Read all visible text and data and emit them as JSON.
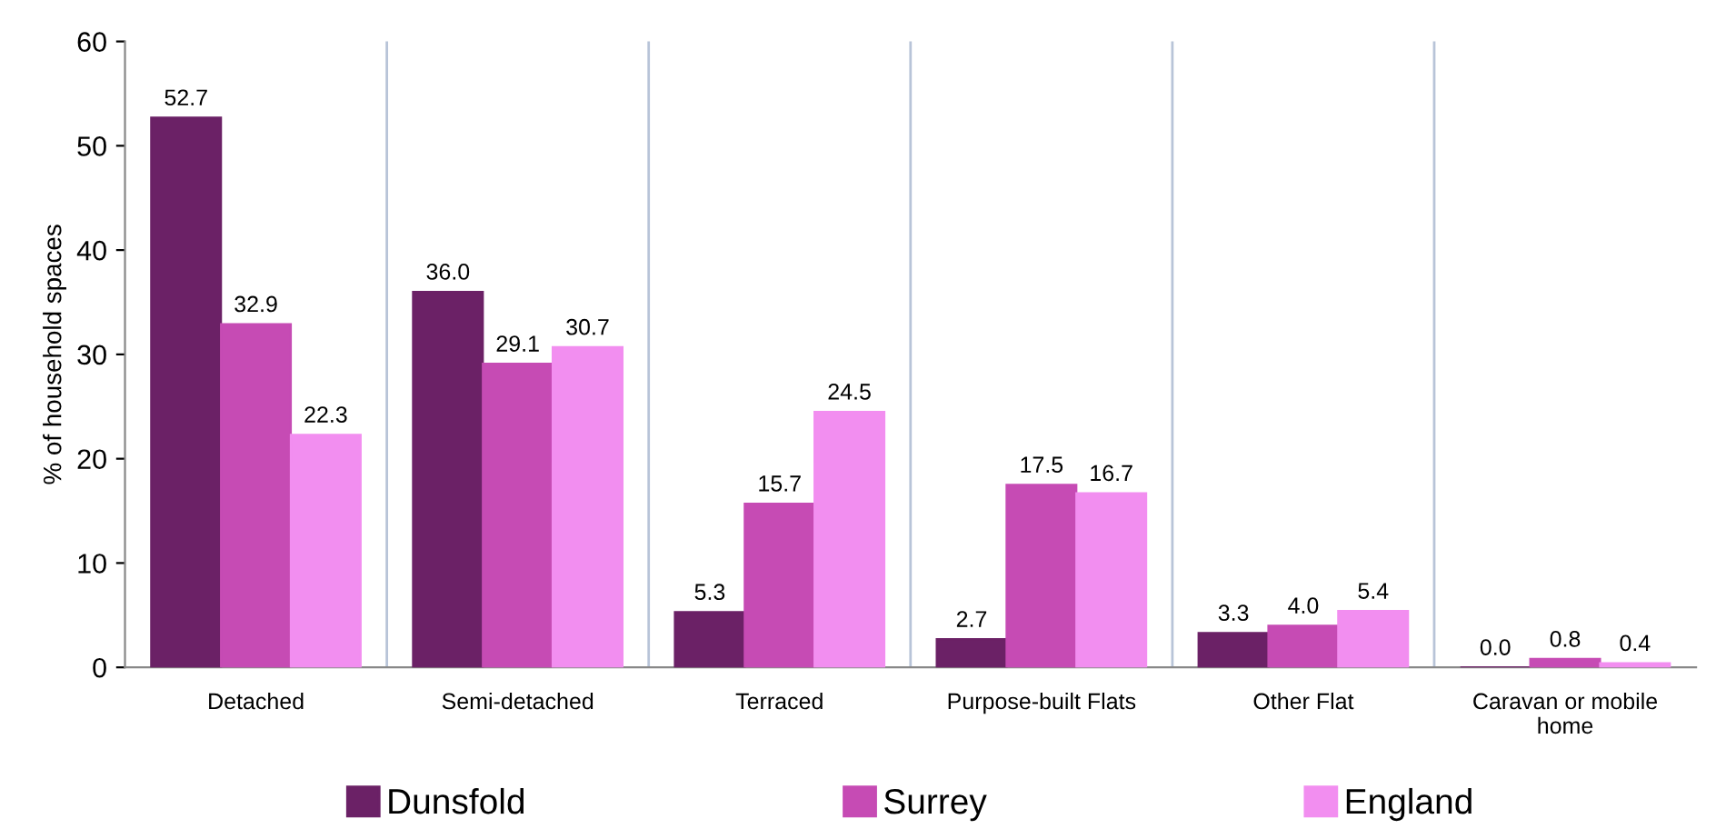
{
  "chart_data": {
    "type": "bar",
    "ylabel": "% of household spaces",
    "categories": [
      "Detached",
      "Semi-detached",
      "Terraced",
      "Purpose-built Flats",
      "Other Flat",
      "Caravan or mobile\nhome"
    ],
    "series": [
      {
        "name": "Dunsfold",
        "color": "#6b2166",
        "values": [
          52.7,
          36.0,
          5.3,
          2.7,
          3.3,
          0.0
        ],
        "value_labels": [
          "52.7",
          "36.0",
          "5.3",
          "2.7",
          "3.3",
          "0.0"
        ]
      },
      {
        "name": "Surrey",
        "color": "#c64bb4",
        "values": [
          32.9,
          29.1,
          15.7,
          17.5,
          4.0,
          0.8
        ],
        "value_labels": [
          "32.9",
          "29.1",
          "15.7",
          "17.5",
          "4.0",
          "0.8"
        ]
      },
      {
        "name": "England",
        "color": "#f28ef0",
        "values": [
          22.3,
          30.7,
          24.5,
          16.7,
          5.4,
          0.4
        ],
        "value_labels": [
          "22.3",
          "30.7",
          "24.5",
          "16.7",
          "5.4",
          "0.4"
        ]
      }
    ],
    "ylim": [
      0,
      60
    ],
    "yticks": [
      0,
      10,
      20,
      30,
      40,
      50,
      60
    ],
    "grid": "x",
    "legend": "bottom"
  }
}
